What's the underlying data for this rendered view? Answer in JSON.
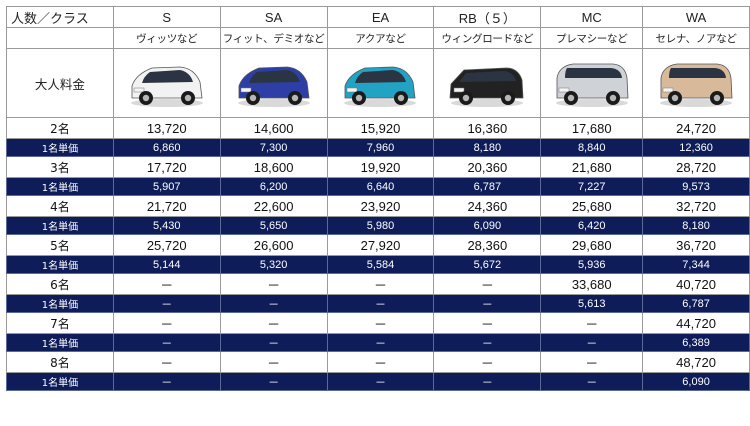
{
  "header": {
    "corner_label": "人数／クラス",
    "adult_fare_label": "大人料金",
    "unit_price_label": "1名単価",
    "classes": [
      {
        "code": "S",
        "example": "ヴィッツなど",
        "car_icon": "compact-hatchback-white-icon",
        "body_color": "#f2f2f2"
      },
      {
        "code": "SA",
        "example": "フィット、デミオなど",
        "car_icon": "compact-hatchback-blue-icon",
        "body_color": "#2d3fa6"
      },
      {
        "code": "EA",
        "example": "アクアなど",
        "car_icon": "hatchback-teal-icon",
        "body_color": "#22a3c4"
      },
      {
        "code": "RB（５）",
        "example": "ウィングロードなど",
        "car_icon": "wagon-black-icon",
        "body_color": "#222222"
      },
      {
        "code": "MC",
        "example": "プレマシーなど",
        "car_icon": "minivan-silver-icon",
        "body_color": "#cfd2d6"
      },
      {
        "code": "WA",
        "example": "セレナ、ノアなど",
        "car_icon": "van-beige-icon",
        "body_color": "#d8b99a"
      }
    ]
  },
  "rows": [
    {
      "people": "2名",
      "totals": [
        "13,720",
        "14,600",
        "15,920",
        "16,360",
        "17,680",
        "24,720"
      ],
      "units": [
        "6,860",
        "7,300",
        "7,960",
        "8,180",
        "8,840",
        "12,360"
      ]
    },
    {
      "people": "3名",
      "totals": [
        "17,720",
        "18,600",
        "19,920",
        "20,360",
        "21,680",
        "28,720"
      ],
      "units": [
        "5,907",
        "6,200",
        "6,640",
        "6,787",
        "7,227",
        "9,573"
      ]
    },
    {
      "people": "4名",
      "totals": [
        "21,720",
        "22,600",
        "23,920",
        "24,360",
        "25,680",
        "32,720"
      ],
      "units": [
        "5,430",
        "5,650",
        "5,980",
        "6,090",
        "6,420",
        "8,180"
      ]
    },
    {
      "people": "5名",
      "totals": [
        "25,720",
        "26,600",
        "27,920",
        "28,360",
        "29,680",
        "36,720"
      ],
      "units": [
        "5,144",
        "5,320",
        "5,584",
        "5,672",
        "5,936",
        "7,344"
      ]
    },
    {
      "people": "6名",
      "totals": [
        "－",
        "－",
        "－",
        "－",
        "33,680",
        "40,720"
      ],
      "units": [
        "－",
        "－",
        "－",
        "－",
        "5,613",
        "6,787"
      ]
    },
    {
      "people": "7名",
      "totals": [
        "－",
        "－",
        "－",
        "－",
        "－",
        "44,720"
      ],
      "units": [
        "－",
        "－",
        "－",
        "－",
        "－",
        "6,389"
      ]
    },
    {
      "people": "8名",
      "totals": [
        "－",
        "－",
        "－",
        "－",
        "－",
        "48,720"
      ],
      "units": [
        "－",
        "－",
        "－",
        "－",
        "－",
        "6,090"
      ]
    }
  ],
  "colors": {
    "unit_row_bg": "#0e1d5a",
    "unit_row_text": "#ffffff",
    "grid": "#9a9a9a"
  }
}
